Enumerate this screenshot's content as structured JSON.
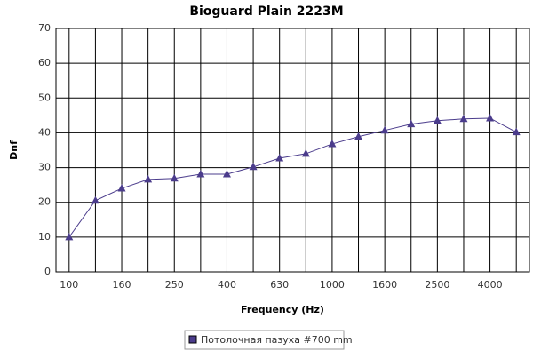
{
  "chart_data": {
    "type": "line",
    "title": "Bioguard Plain 2223M",
    "x_label": "Frequency (Hz)",
    "y_label": "Dnf",
    "categories": [
      "100",
      null,
      "160",
      null,
      "250",
      null,
      "400",
      null,
      "630",
      null,
      "1000",
      null,
      "1600",
      null,
      "2500",
      null,
      "4000",
      null
    ],
    "series": [
      {
        "name": "Потолочная пазуха #700 mm",
        "color": "#4b3c8c",
        "values": [
          10,
          20.5,
          24,
          26.6,
          26.9,
          28.1,
          28.1,
          30.2,
          32.7,
          34,
          36.8,
          38.9,
          40.7,
          42.5,
          43.5,
          44,
          44.2,
          40.2
        ]
      }
    ],
    "ylim": [
      0,
      70
    ],
    "yticks": [
      0,
      10,
      20,
      30,
      40,
      50,
      60,
      70
    ],
    "grid": true
  }
}
